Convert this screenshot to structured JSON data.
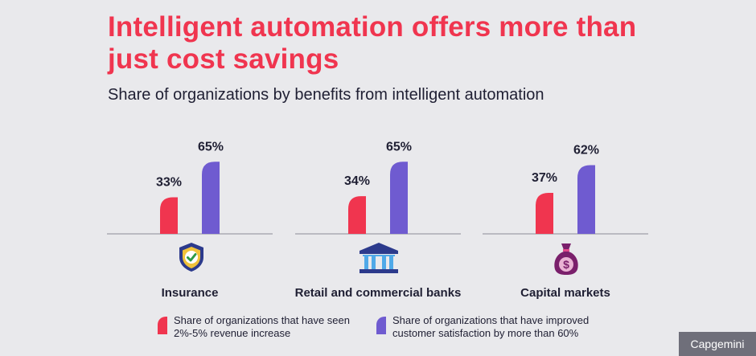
{
  "title": "Intelligent automation offers more than just cost savings",
  "subtitle": "Share of organizations by benefits from intelligent automation",
  "brand": "Capgemini",
  "colors": {
    "series_a": "#f0354f",
    "series_b": "#6f5bd0",
    "title": "#f0354f",
    "background": "#e9e9ec"
  },
  "groups": [
    {
      "label": "Insurance",
      "icon": "shield-check-icon"
    },
    {
      "label": "Retail and commercial banks",
      "icon": "bank-building-icon"
    },
    {
      "label": "Capital markets",
      "icon": "money-bag-icon"
    }
  ],
  "legend": [
    {
      "label": "Share of organizations that have seen 2%-5% revenue increase"
    },
    {
      "label": "Share of organizations that have improved customer satisfaction by more than 60%"
    }
  ],
  "chart_data": {
    "type": "bar",
    "categories": [
      "Insurance",
      "Retail and commercial banks",
      "Capital markets"
    ],
    "series": [
      {
        "name": "Share of organizations that have seen 2%-5% revenue increase",
        "values": [
          33,
          34,
          37
        ],
        "labels": [
          "33%",
          "34%",
          "37%"
        ]
      },
      {
        "name": "Share of organizations that have improved customer satisfaction by more than 60%",
        "values": [
          65,
          65,
          62
        ],
        "labels": [
          "65%",
          "65%",
          "62%"
        ]
      }
    ],
    "unit": "%",
    "ylim": [
      0,
      100
    ],
    "grid": false,
    "legend_position": "bottom"
  }
}
